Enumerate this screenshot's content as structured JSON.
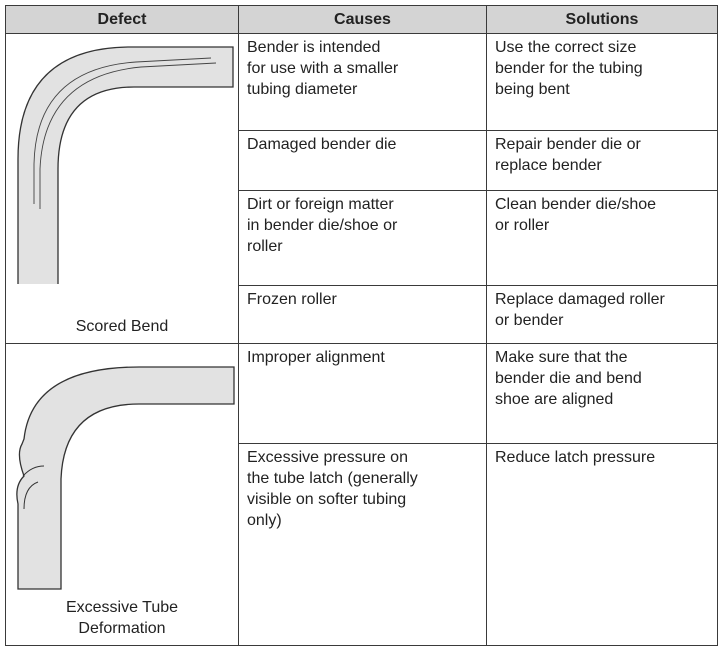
{
  "table": {
    "header": [
      "Defect",
      "Causes",
      "Solutions"
    ],
    "groups": [
      {
        "defect": [
          "Scored Bend"
        ],
        "rows": [
          {
            "cause": [
              "Bender is intended",
              "for use with a smaller",
              "tubing diameter"
            ],
            "solution": [
              "Use the correct size",
              "bender for the tubing",
              "being bent"
            ]
          },
          {
            "cause": [
              "Damaged bender die"
            ],
            "solution": [
              "Repair bender die or",
              "replace bender"
            ]
          },
          {
            "cause": [
              "Dirt or foreign matter",
              "in bender die/shoe or",
              "roller"
            ],
            "solution": [
              "Clean bender die/shoe",
              "or roller"
            ]
          },
          {
            "cause": [
              "Frozen roller"
            ],
            "solution": [
              "Replace damaged roller",
              "or bender"
            ]
          }
        ]
      },
      {
        "defect": [
          "Excessive Tube",
          "Deformation"
        ],
        "rows": [
          {
            "cause": [
              "Improper alignment"
            ],
            "solution": [
              "Make sure that the",
              "bender die and bend",
              "shoe are aligned"
            ]
          },
          {
            "cause": [
              "Excessive pressure on",
              "the tube latch (generally",
              "visible on softer tubing",
              "only)"
            ],
            "solution": [
              "Reduce latch pressure"
            ]
          }
        ]
      }
    ]
  }
}
